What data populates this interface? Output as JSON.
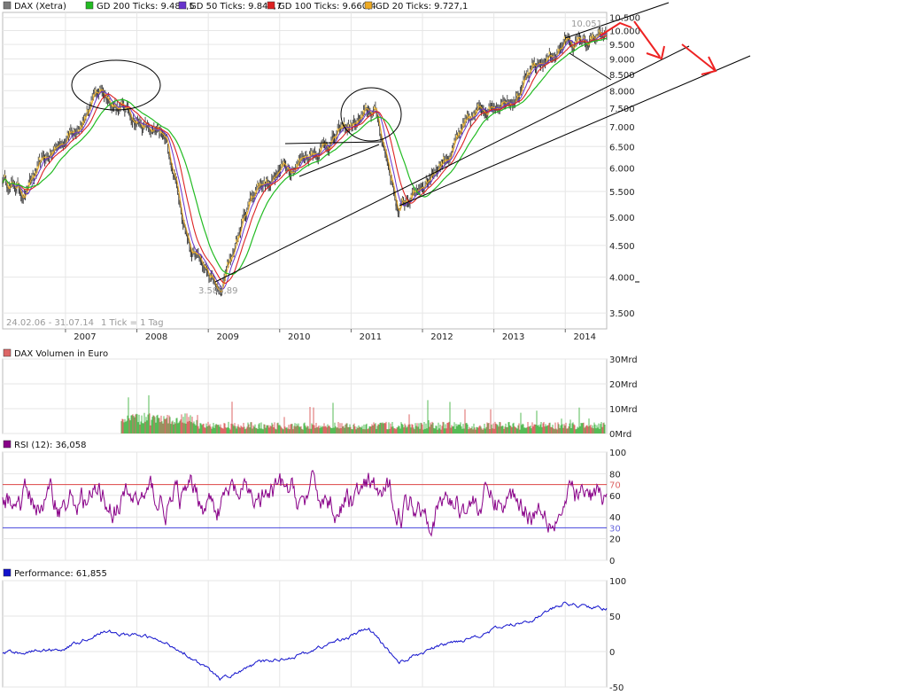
{
  "legend": [
    {
      "label": "DAX (Xetra)",
      "color": "#7a7a7a"
    },
    {
      "label": "GD 200 Ticks: 9.485,5",
      "color": "#22bb22"
    },
    {
      "label": "GD 50 Ticks: 9.845,7",
      "color": "#6633cc"
    },
    {
      "label": "GD 100 Ticks: 9.660,4",
      "color": "#dd2222"
    },
    {
      "label": "GD 20 Ticks: 9.727,1",
      "color": "#eeaa22"
    }
  ],
  "annotations": {
    "low_label": "3.588,89",
    "high_label": "10.051",
    "date_range": "24.02.06 - 31.07.14",
    "tick_info": "1 Tick = 1 Tag"
  },
  "panels": {
    "volume_title": "DAX Volumen in Euro",
    "rsi_title": "RSI (12): 36,058",
    "performance_title": "Performance: 61,855"
  },
  "colors": {
    "price": "#444444",
    "gd200": "#22bb22",
    "gd50": "#6633cc",
    "gd100": "#dd2222",
    "gd20": "#eeaa22",
    "rsi": "#880088",
    "performance": "#1111cc",
    "red_arrows": "#ee2222",
    "volume_up": "#55bb55",
    "volume_down": "#dd6666"
  },
  "chart_data": [
    {
      "type": "line",
      "name": "price",
      "x": [
        "2006-02",
        "2006-06",
        "2007-01",
        "2007-07",
        "2008-01",
        "2008-06",
        "2008-10",
        "2009-03",
        "2009-09",
        "2010-04",
        "2010-12",
        "2011-05",
        "2011-09",
        "2012-05",
        "2012-12",
        "2013-06",
        "2014-01",
        "2014-07"
      ],
      "values": [
        5800,
        5500,
        6700,
        8000,
        7200,
        6500,
        4500,
        3700,
        5600,
        6200,
        6900,
        7400,
        5100,
        6300,
        7600,
        8200,
        9600,
        9600
      ],
      "yticks": [
        "3.500",
        "4.000",
        "4.500",
        "5.000",
        "5.500",
        "6.000",
        "6.500",
        "7.000",
        "7.500",
        "8.000",
        "8.500",
        "9.000",
        "9.500",
        "10.000",
        "10.500"
      ],
      "xticks": [
        "2007",
        "2008",
        "2009",
        "2010",
        "2011",
        "2012",
        "2013",
        "2014"
      ],
      "ylim": [
        3300,
        10700
      ],
      "log_scale": true,
      "grid": true,
      "legend_position": "top-left"
    },
    {
      "type": "bar",
      "name": "volume",
      "yticks": [
        "0Mrd",
        "10Mrd",
        "20Mrd",
        "30Mrd"
      ],
      "ylim": [
        0,
        30
      ]
    },
    {
      "type": "line",
      "name": "rsi",
      "yticks": [
        "0",
        "20",
        "30",
        "40",
        "60",
        "70",
        "80",
        "100"
      ],
      "reference_lines": [
        30,
        70
      ],
      "ylim": [
        0,
        100
      ]
    },
    {
      "type": "line",
      "name": "performance",
      "x": [
        "2006-02",
        "2007-01",
        "2007-07",
        "2008-03",
        "2008-09",
        "2009-03",
        "2009-09",
        "2010-05",
        "2011-04",
        "2011-09",
        "2012-03",
        "2012-12",
        "2013-07",
        "2014-01",
        "2014-07"
      ],
      "values": [
        -3,
        5,
        28,
        20,
        0,
        -40,
        -18,
        -3,
        32,
        -15,
        5,
        28,
        45,
        68,
        61
      ],
      "yticks": [
        "-50",
        "0",
        "50",
        "100"
      ],
      "ylim": [
        -50,
        100
      ]
    }
  ]
}
